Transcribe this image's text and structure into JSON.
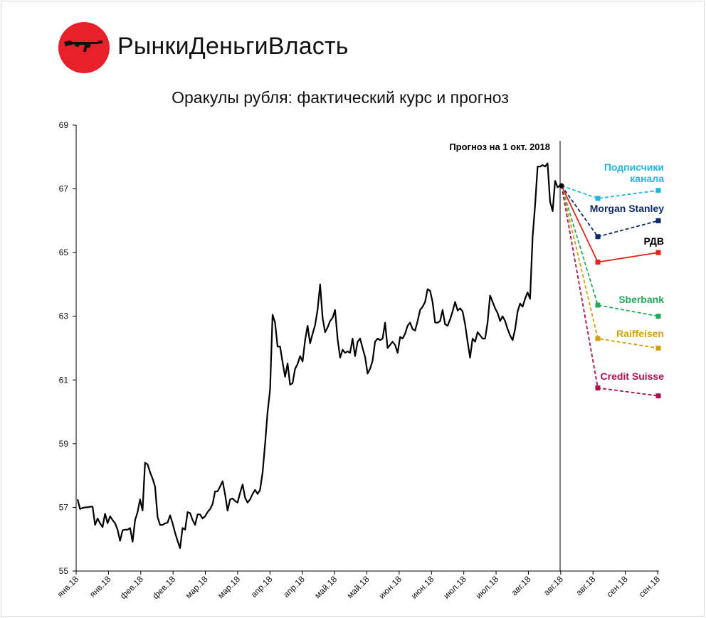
{
  "brand": {
    "name": "РынкиДеньгиВласть",
    "logo_icon": "rifle-icon",
    "logo_color": "#e8202a"
  },
  "chart_data": {
    "type": "line",
    "title": "Оракулы рубля: фактический курс и прогноз",
    "xlabel": "",
    "ylabel": "",
    "ylim": [
      55,
      69
    ],
    "yticks": [
      55,
      57,
      59,
      61,
      63,
      65,
      67,
      69
    ],
    "xticks": [
      "янв.18",
      "янв.18",
      "фев.18",
      "фев.18",
      "мар.18",
      "мар.18",
      "апр.18",
      "апр.18",
      "май.18",
      "май.18",
      "июн.18",
      "июн.18",
      "июл.18",
      "июл.18",
      "авг.18",
      "авг.18",
      "авг.18",
      "сен.18",
      "сен.18"
    ],
    "grid": false,
    "actual": {
      "color": "#000000",
      "values": [
        57.25,
        56.95,
        56.98,
        57.0,
        57.0,
        57.02,
        57.02,
        56.45,
        56.65,
        56.5,
        56.38,
        56.8,
        56.5,
        56.72,
        56.6,
        56.5,
        56.3,
        55.95,
        56.28,
        56.3,
        56.3,
        56.35,
        55.92,
        56.6,
        56.85,
        57.25,
        56.9,
        58.4,
        58.35,
        58.1,
        57.9,
        57.65,
        56.7,
        56.45,
        56.45,
        56.5,
        56.52,
        56.75,
        56.5,
        56.2,
        55.95,
        55.72,
        56.35,
        56.3,
        56.85,
        56.82,
        56.6,
        56.45,
        56.78,
        56.78,
        56.65,
        56.72,
        56.85,
        56.95,
        57.1,
        57.5,
        57.5,
        57.65,
        57.82,
        57.4,
        56.9,
        57.25,
        57.28,
        57.2,
        57.15,
        57.45,
        57.72,
        57.3,
        57.15,
        57.25,
        57.42,
        57.55,
        57.42,
        57.55,
        58.1,
        59.0,
        60.0,
        60.7,
        63.05,
        62.8,
        62.05,
        62.05,
        61.55,
        61.1,
        61.52,
        60.85,
        60.9,
        61.35,
        61.5,
        61.75,
        61.58,
        62.25,
        62.7,
        62.15,
        62.45,
        62.72,
        63.2,
        64.0,
        62.95,
        62.5,
        62.65,
        62.85,
        62.95,
        63.2,
        62.3,
        61.7,
        61.95,
        61.85,
        61.9,
        61.85,
        62.3,
        61.75,
        62.2,
        62.3,
        62.0,
        61.72,
        61.2,
        61.35,
        61.6,
        62.2,
        62.3,
        62.25,
        62.3,
        62.8,
        62.0,
        62.1,
        62.2,
        62.1,
        61.85,
        62.35,
        62.3,
        62.45,
        62.7,
        62.8,
        62.6,
        62.55,
        62.85,
        63.2,
        63.3,
        63.45,
        63.85,
        63.8,
        63.45,
        62.8,
        62.8,
        62.85,
        63.2,
        62.75,
        62.7,
        62.9,
        63.15,
        63.45,
        63.18,
        63.25,
        63.15,
        62.75,
        62.2,
        61.7,
        62.3,
        62.2,
        62.5,
        62.4,
        62.3,
        62.3,
        62.8,
        63.65,
        63.45,
        63.25,
        63.1,
        62.85,
        63.0,
        62.85,
        62.6,
        62.4,
        62.25,
        62.6,
        63.15,
        63.4,
        63.3,
        63.55,
        63.75,
        63.55,
        65.5,
        66.5,
        67.7,
        67.7,
        67.75,
        67.7,
        67.8,
        66.6,
        66.3,
        67.25,
        67.05,
        67.1
      ]
    },
    "forecast_start": 67.1,
    "divider_label": "Прогноз на 1 окт. 2018",
    "series": [
      {
        "name": "Подписчики канала",
        "label_lines": [
          "Подписчики",
          "канала"
        ],
        "color": "#1fb6e0",
        "values": [
          66.7,
          66.95
        ],
        "dash": true
      },
      {
        "name": "Morgan Stanley",
        "label_lines": [
          "Morgan Stanley"
        ],
        "color": "#0f2a6b",
        "values": [
          65.5,
          66.0
        ],
        "dash": true
      },
      {
        "name": "РДВ",
        "label_lines": [
          "РДВ"
        ],
        "color": "#e32619",
        "label_color": "#000000",
        "values": [
          64.7,
          65.0
        ],
        "dash": false
      },
      {
        "name": "Sberbank",
        "label_lines": [
          "Sberbank"
        ],
        "color": "#21a95a",
        "values": [
          63.35,
          63.0
        ],
        "dash": true
      },
      {
        "name": "Raiffeisen",
        "label_lines": [
          "Raiffeisen"
        ],
        "color": "#d3a10f",
        "values": [
          62.3,
          62.0
        ],
        "dash": true
      },
      {
        "name": "Credit Suisse",
        "label_lines": [
          "Credit Suisse"
        ],
        "color": "#ad1050",
        "values": [
          60.75,
          60.5
        ],
        "dash": true
      }
    ]
  }
}
